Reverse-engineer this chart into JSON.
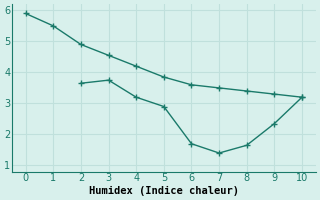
{
  "line1_x": [
    0,
    1,
    2,
    3,
    4,
    5,
    6,
    7,
    8,
    9,
    10
  ],
  "line1_y": [
    5.9,
    5.5,
    4.9,
    4.55,
    4.2,
    3.85,
    3.6,
    3.5,
    3.4,
    3.3,
    3.2
  ],
  "line2_x": [
    2,
    3,
    4,
    5,
    6,
    7,
    8,
    9,
    10
  ],
  "line2_y": [
    3.65,
    3.75,
    3.2,
    2.9,
    1.7,
    1.4,
    1.65,
    2.35,
    3.2
  ],
  "line_color": "#1a7a6a",
  "bg_color": "#d8f0ec",
  "grid_color": "#c0e0dc",
  "xlabel": "Humidex (Indice chaleur)",
  "xlim": [
    -0.5,
    10.5
  ],
  "ylim": [
    0.8,
    6.2
  ],
  "xticks": [
    0,
    1,
    2,
    3,
    4,
    5,
    6,
    7,
    8,
    9,
    10
  ],
  "yticks": [
    1,
    2,
    3,
    4,
    5,
    6
  ],
  "marker": "+",
  "marker_size": 4,
  "linewidth": 1.0,
  "xlabel_fontsize": 7.5,
  "tick_fontsize": 7
}
